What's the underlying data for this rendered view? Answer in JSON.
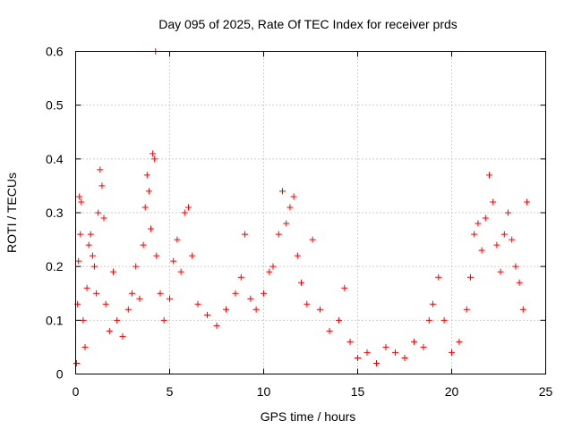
{
  "chart_data": {
    "type": "scatter",
    "title": "Day 095 of 2025, Rate Of TEC Index for receiver prds",
    "xlabel": "GPS time / hours",
    "ylabel": "ROTI / TECUs",
    "xlim": [
      0,
      25
    ],
    "ylim": [
      0,
      0.6
    ],
    "xticks": [
      0,
      5,
      10,
      15,
      20,
      25
    ],
    "xtick_labels": [
      "0",
      "5",
      "10",
      "15",
      "20",
      "25"
    ],
    "yticks": [
      0,
      0.1,
      0.2,
      0.3,
      0.4,
      0.5,
      0.6
    ],
    "ytick_labels": [
      "0",
      "0.1",
      "0.2",
      "0.3",
      "0.4",
      "0.5",
      "0.6"
    ],
    "grid": true,
    "marker": "plus",
    "point_color": "#ff0000",
    "series": [
      {
        "points": [
          [
            0.05,
            0.02
          ],
          [
            0.1,
            0.13
          ],
          [
            0.15,
            0.21
          ],
          [
            0.2,
            0.33
          ],
          [
            0.25,
            0.26
          ],
          [
            0.3,
            0.32
          ],
          [
            0.4,
            0.1
          ],
          [
            0.5,
            0.05
          ],
          [
            0.6,
            0.16
          ],
          [
            0.7,
            0.24
          ],
          [
            0.8,
            0.26
          ],
          [
            0.9,
            0.22
          ],
          [
            1.0,
            0.2
          ],
          [
            1.1,
            0.15
          ],
          [
            1.2,
            0.3
          ],
          [
            1.3,
            0.38
          ],
          [
            1.4,
            0.35
          ],
          [
            1.5,
            0.29
          ],
          [
            1.6,
            0.13
          ],
          [
            1.8,
            0.08
          ],
          [
            2.0,
            0.19
          ],
          [
            2.2,
            0.1
          ],
          [
            2.5,
            0.07
          ],
          [
            2.8,
            0.12
          ],
          [
            3.0,
            0.15
          ],
          [
            3.2,
            0.2
          ],
          [
            3.4,
            0.14
          ],
          [
            3.6,
            0.24
          ],
          [
            3.7,
            0.31
          ],
          [
            3.8,
            0.37
          ],
          [
            3.9,
            0.34
          ],
          [
            4.0,
            0.27
          ],
          [
            4.1,
            0.41
          ],
          [
            4.2,
            0.4
          ],
          [
            4.25,
            0.6
          ],
          [
            4.3,
            0.22
          ],
          [
            4.5,
            0.15
          ],
          [
            4.7,
            0.1
          ],
          [
            5.0,
            0.14
          ],
          [
            5.2,
            0.21
          ],
          [
            5.4,
            0.25
          ],
          [
            5.6,
            0.19
          ],
          [
            5.8,
            0.3
          ],
          [
            6.0,
            0.31
          ],
          [
            6.2,
            0.22
          ],
          [
            6.5,
            0.13
          ],
          [
            7.0,
            0.11
          ],
          [
            7.5,
            0.09
          ],
          [
            8.0,
            0.12
          ],
          [
            8.5,
            0.15
          ],
          [
            8.8,
            0.18
          ],
          [
            9.0,
            0.26
          ],
          [
            9.3,
            0.14
          ],
          [
            9.6,
            0.12
          ],
          [
            10.0,
            0.15
          ],
          [
            10.3,
            0.19
          ],
          [
            10.5,
            0.2
          ],
          [
            10.8,
            0.26
          ],
          [
            11.0,
            0.34
          ],
          [
            11.2,
            0.28
          ],
          [
            11.4,
            0.31
          ],
          [
            11.6,
            0.33
          ],
          [
            11.8,
            0.22
          ],
          [
            12.0,
            0.17
          ],
          [
            12.3,
            0.13
          ],
          [
            12.6,
            0.25
          ],
          [
            13.0,
            0.12
          ],
          [
            13.5,
            0.08
          ],
          [
            14.0,
            0.1
          ],
          [
            14.3,
            0.16
          ],
          [
            14.6,
            0.06
          ],
          [
            15.0,
            0.03
          ],
          [
            15.5,
            0.04
          ],
          [
            16.0,
            0.02
          ],
          [
            16.5,
            0.05
          ],
          [
            17.0,
            0.04
          ],
          [
            17.5,
            0.03
          ],
          [
            18.0,
            0.06
          ],
          [
            18.5,
            0.05
          ],
          [
            18.8,
            0.1
          ],
          [
            19.0,
            0.13
          ],
          [
            19.3,
            0.18
          ],
          [
            19.6,
            0.1
          ],
          [
            20.0,
            0.04
          ],
          [
            20.4,
            0.06
          ],
          [
            20.8,
            0.12
          ],
          [
            21.0,
            0.18
          ],
          [
            21.2,
            0.26
          ],
          [
            21.4,
            0.28
          ],
          [
            21.6,
            0.23
          ],
          [
            21.8,
            0.29
          ],
          [
            22.0,
            0.37
          ],
          [
            22.2,
            0.32
          ],
          [
            22.4,
            0.24
          ],
          [
            22.6,
            0.19
          ],
          [
            22.8,
            0.26
          ],
          [
            23.0,
            0.3
          ],
          [
            23.2,
            0.25
          ],
          [
            23.4,
            0.2
          ],
          [
            23.6,
            0.17
          ],
          [
            23.8,
            0.12
          ],
          [
            24.0,
            0.32
          ]
        ]
      }
    ]
  }
}
